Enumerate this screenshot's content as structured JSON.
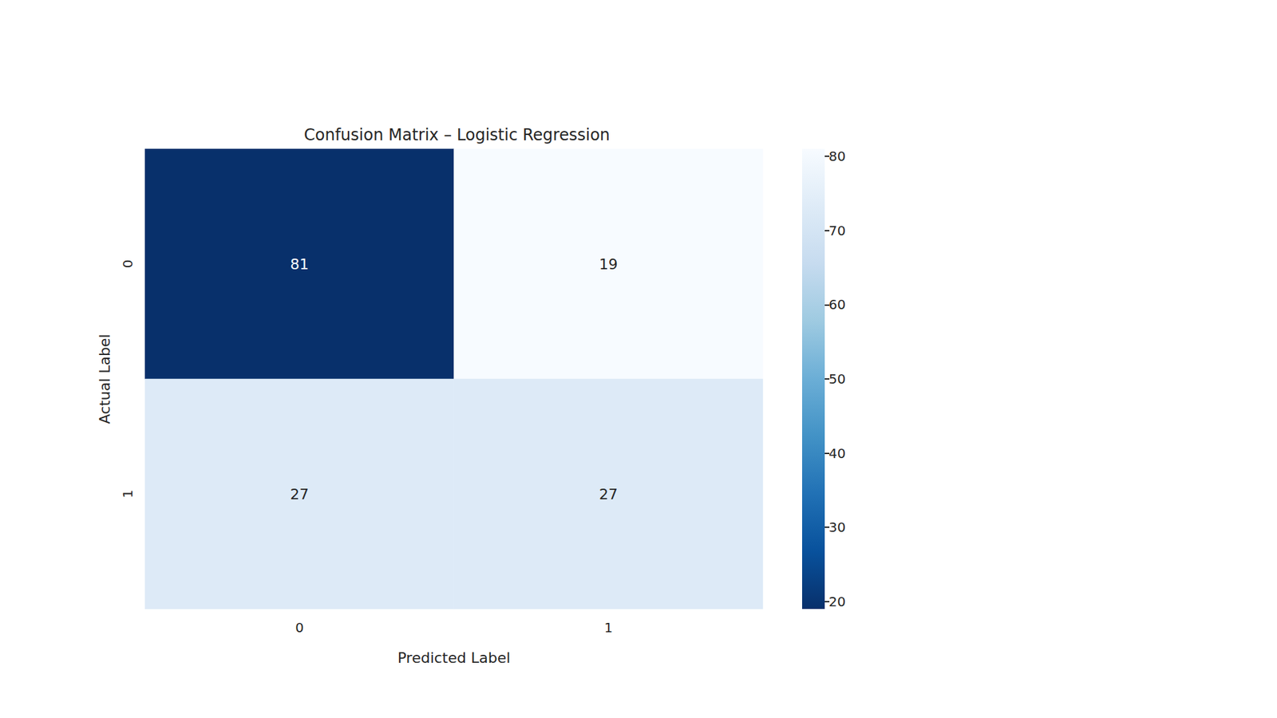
{
  "chart_data": {
    "type": "heatmap",
    "title": "Confusion Matrix – Logistic Regression",
    "x_label": "Predicted Label",
    "y_label": "Actual Label",
    "x_categories": [
      "0",
      "1"
    ],
    "y_categories": [
      "0",
      "1"
    ],
    "values": [
      [
        81,
        19
      ],
      [
        27,
        27
      ]
    ],
    "data_labels": true,
    "color": "Blues",
    "colorbar_range": [
      19,
      81
    ],
    "colorbar_ticks": [
      20,
      30,
      40,
      50,
      60,
      70,
      80
    ]
  }
}
